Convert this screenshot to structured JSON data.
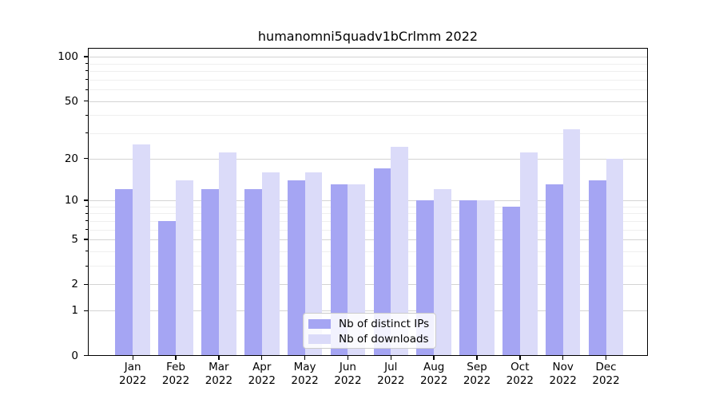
{
  "title": "humanomni5quadv1bCrlmm 2022",
  "chart_data": {
    "type": "bar",
    "categories": [
      "Jan",
      "Feb",
      "Mar",
      "Apr",
      "May",
      "Jun",
      "Jul",
      "Aug",
      "Sep",
      "Oct",
      "Nov",
      "Dec"
    ],
    "year": "2022",
    "series": [
      {
        "name": "Nb of distinct IPs",
        "color": "#a5a5f3",
        "values": [
          12,
          7,
          12,
          12,
          14,
          13,
          17,
          10,
          10,
          9,
          13,
          14
        ]
      },
      {
        "name": "Nb of downloads",
        "color": "#dbdbf9",
        "values": [
          25,
          14,
          22,
          16,
          16,
          13,
          24,
          12,
          10,
          22,
          32,
          20
        ]
      }
    ],
    "y_scale": "log1p",
    "y_ticks": [
      0,
      1,
      2,
      5,
      10,
      20,
      50,
      100
    ],
    "y_minor_ticks": [
      3,
      4,
      6,
      7,
      8,
      9,
      30,
      40,
      60,
      70,
      80,
      90
    ],
    "ylim": [
      0,
      115
    ],
    "grid": true,
    "legend_position": "lower center"
  }
}
